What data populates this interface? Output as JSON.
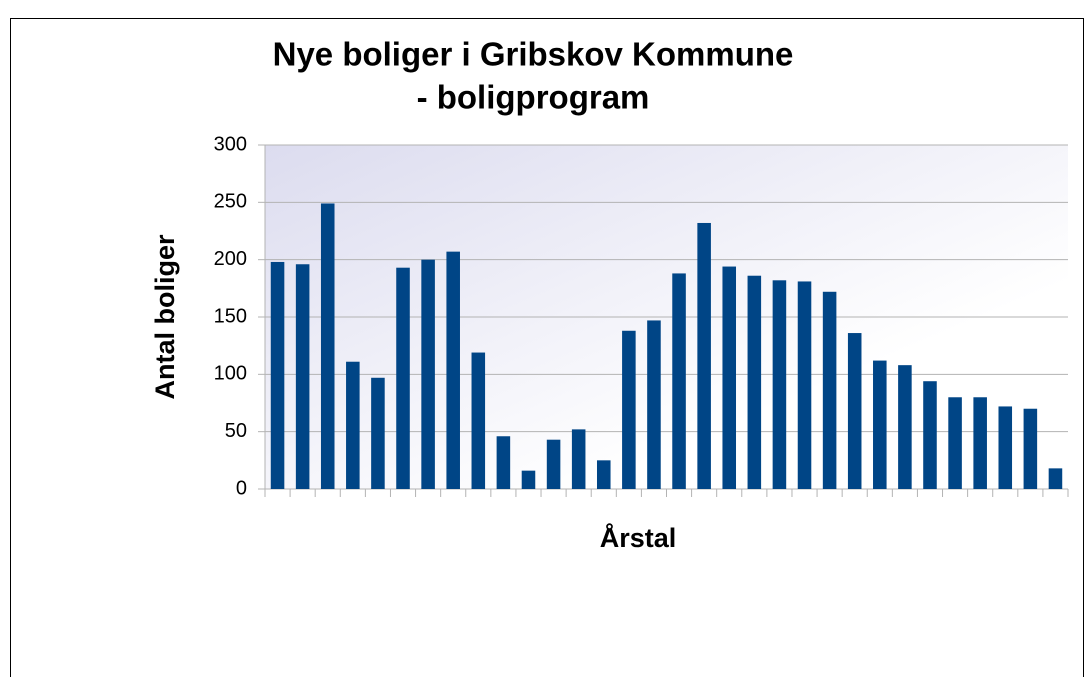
{
  "chart_data": {
    "type": "bar",
    "title": "Nye boliger i Gribskov Kommune",
    "subtitle": "- boligprogram",
    "x_label": "Årstal",
    "y_label": "Antal boliger",
    "categories": [
      null,
      null,
      null,
      null,
      null,
      null,
      null,
      null,
      null,
      null,
      null,
      null,
      null,
      null,
      null,
      null,
      null,
      null,
      null,
      null,
      null,
      null,
      null,
      null,
      null,
      null,
      null,
      null,
      null,
      null,
      null,
      null
    ],
    "values": [
      198,
      196,
      249,
      111,
      97,
      193,
      200,
      207,
      119,
      46,
      16,
      43,
      52,
      25,
      138,
      147,
      188,
      232,
      194,
      186,
      182,
      181,
      172,
      136,
      112,
      108,
      94,
      80,
      80,
      72,
      70,
      18
    ],
    "color": "#004586",
    "ylim": [
      0,
      300
    ],
    "yticks": [
      0,
      50,
      100,
      150,
      200,
      250,
      300
    ],
    "grid": true
  }
}
